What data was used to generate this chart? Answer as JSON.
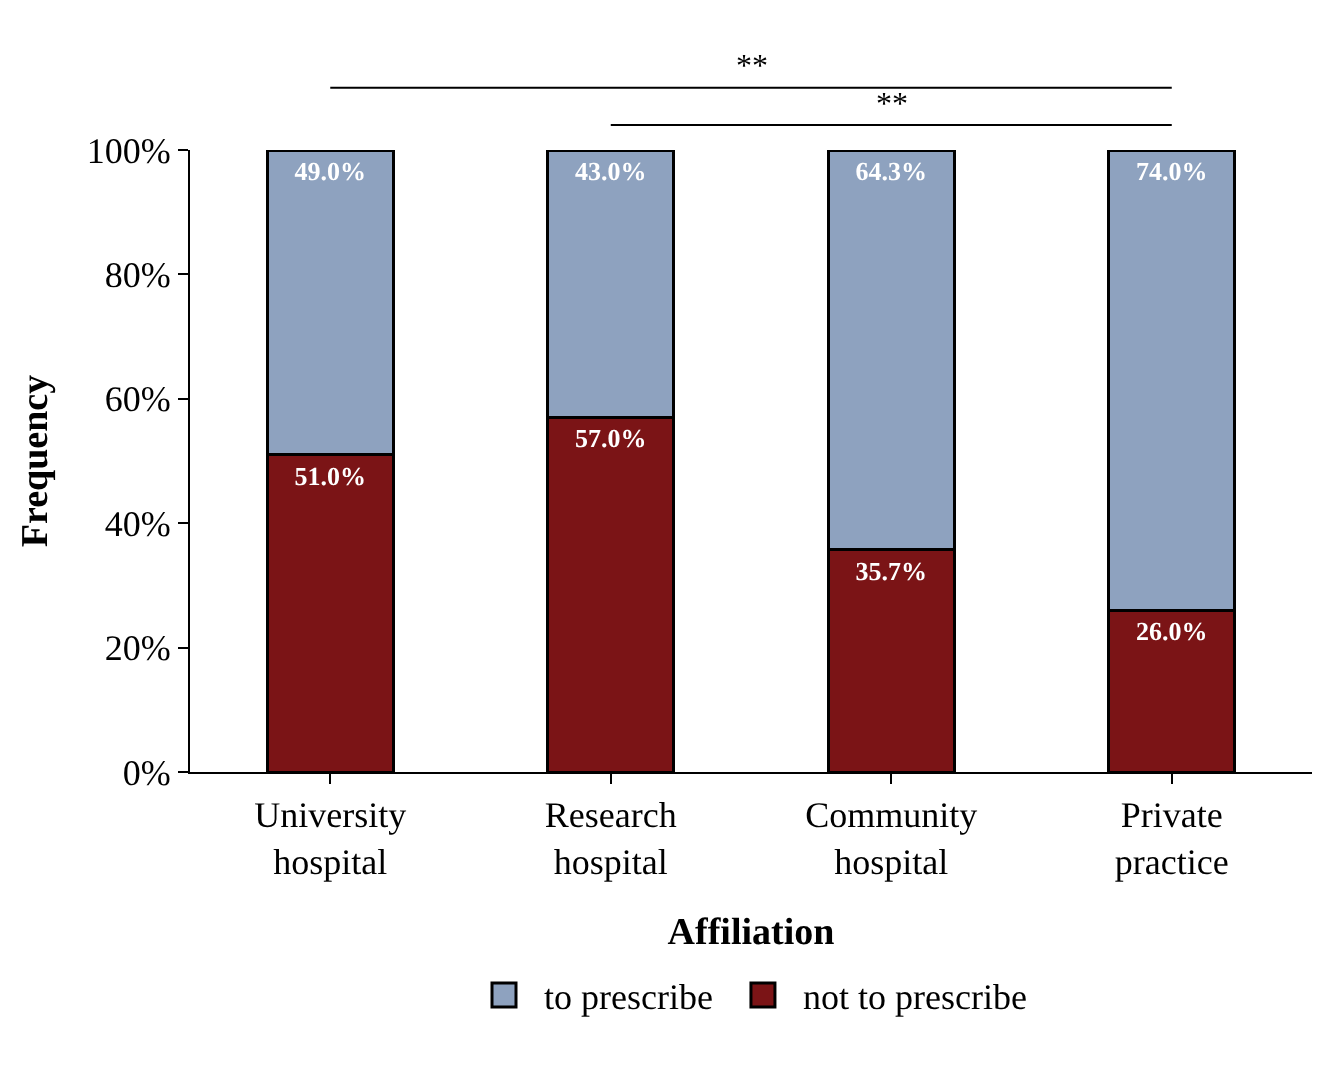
{
  "chart_data": {
    "type": "bar",
    "stacked": true,
    "xlabel": "Affiliation",
    "ylabel": "Frequency",
    "categories": [
      "University hospital",
      "Research hospital",
      "Community hospital",
      "Private practice"
    ],
    "series": [
      {
        "name": "not to prescribe",
        "color": "#7b1416",
        "values": [
          51.0,
          57.0,
          35.7,
          26.0
        ],
        "value_labels": [
          "51.0%",
          "57.0%",
          "35.7%",
          "26.0%"
        ]
      },
      {
        "name": "to prescribe",
        "color": "#8ea2bf",
        "values": [
          49.0,
          43.0,
          64.3,
          74.0
        ],
        "value_labels": [
          "49.0%",
          "43.0%",
          "64.3%",
          "74.0%"
        ]
      }
    ],
    "ylim": [
      0,
      100
    ],
    "yticks": [
      {
        "value": 0,
        "label": "0%"
      },
      {
        "value": 20,
        "label": "20%"
      },
      {
        "value": 40,
        "label": "40%"
      },
      {
        "value": 60,
        "label": "60%"
      },
      {
        "value": 80,
        "label": "80%"
      },
      {
        "value": 100,
        "label": "100%"
      }
    ],
    "grid": false,
    "legend": "bottom",
    "annotations": [
      "**",
      "**"
    ]
  }
}
